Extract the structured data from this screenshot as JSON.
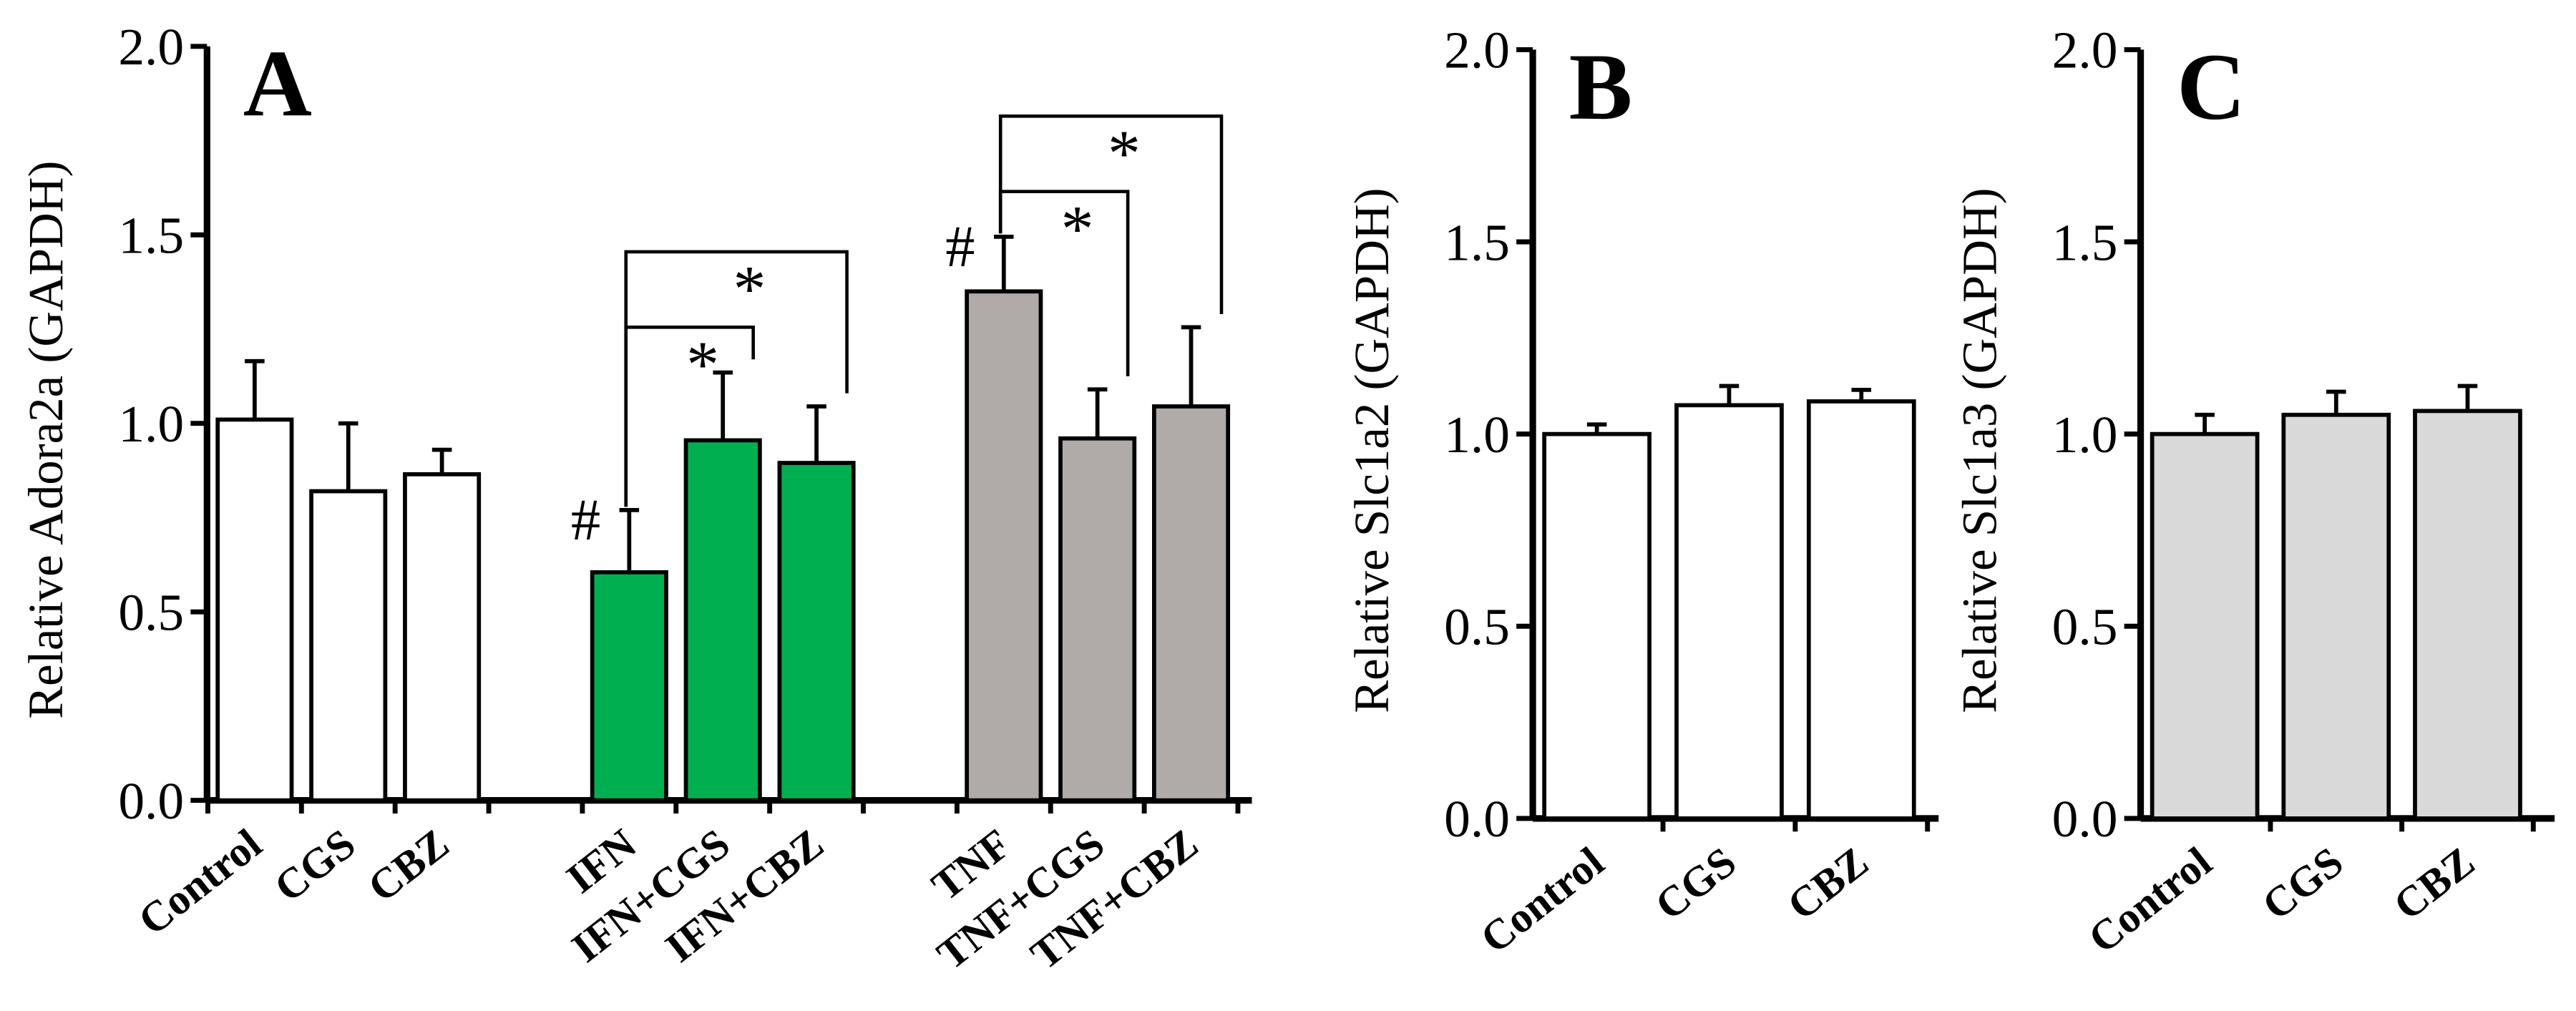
{
  "chart_data": [
    {
      "type": "bar",
      "panel_label": "A",
      "ylabel": "Relative Adora2a (GAPDH)",
      "categories": [
        "Control",
        "CGS",
        "CBZ",
        "IFN",
        "IFN+CGS",
        "IFN+CBZ",
        "TNF",
        "TNF+CGS",
        "TNF+CBZ"
      ],
      "values": [
        1.01,
        0.82,
        0.865,
        0.605,
        0.955,
        0.895,
        1.35,
        0.96,
        1.045
      ],
      "errors": [
        0.155,
        0.18,
        0.065,
        0.165,
        0.18,
        0.15,
        0.145,
        0.13,
        0.21
      ],
      "colors": [
        "#ffffff",
        "#ffffff",
        "#ffffff",
        "#00b050",
        "#00b050",
        "#00b050",
        "#b0aba8",
        "#b0aba8",
        "#b0aba8"
      ],
      "ylim": [
        0,
        2
      ],
      "yticks": [
        {
          "value": 0,
          "label": "0.0"
        },
        0.5,
        {
          "value": 1,
          "label": "1.0"
        },
        1.5,
        {
          "value": 2,
          "label": "2.0"
        }
      ],
      "markers": [
        {
          "label": "#",
          "bar": "IFN"
        },
        {
          "label": "#",
          "bar": "TNF"
        }
      ],
      "brackets": [
        {
          "label": "*",
          "from": "IFN",
          "to": "IFN+CGS"
        },
        {
          "label": "*",
          "from": "IFN",
          "to": "IFN+CBZ"
        },
        {
          "label": "*",
          "from": "TNF",
          "to": "TNF+CGS"
        },
        {
          "label": "*",
          "from": "TNF",
          "to": "TNF+CBZ"
        }
      ]
    },
    {
      "type": "bar",
      "panel_label": "B",
      "ylabel": "Relative Slc1a2 (GAPDH)",
      "categories": [
        "Control",
        "CGS",
        "CBZ"
      ],
      "values": [
        1.0,
        1.075,
        1.085
      ],
      "errors": [
        0.025,
        0.05,
        0.03
      ],
      "colors": [
        "#ffffff",
        "#ffffff",
        "#ffffff"
      ],
      "ylim": [
        0,
        2
      ],
      "yticks": [
        {
          "value": 0,
          "label": "0.0"
        },
        0.5,
        {
          "value": 1,
          "label": "1.0"
        },
        1.5,
        {
          "value": 2,
          "label": "2.0"
        }
      ]
    },
    {
      "type": "bar",
      "panel_label": "C",
      "ylabel": "Relative Slc1a3 (GAPDH)",
      "categories": [
        "Control",
        "CGS",
        "CBZ"
      ],
      "values": [
        1.0,
        1.05,
        1.06
      ],
      "errors": [
        0.05,
        0.06,
        0.065
      ],
      "colors": [
        "#d9d9d9",
        "#d9d9d9",
        "#d9d9d9"
      ],
      "ylim": [
        0,
        2
      ],
      "yticks": [
        {
          "value": 0,
          "label": "0.0"
        },
        0.5,
        {
          "value": 1,
          "label": "1.0"
        },
        1.5,
        {
          "value": 2,
          "label": "2.0"
        }
      ]
    }
  ]
}
